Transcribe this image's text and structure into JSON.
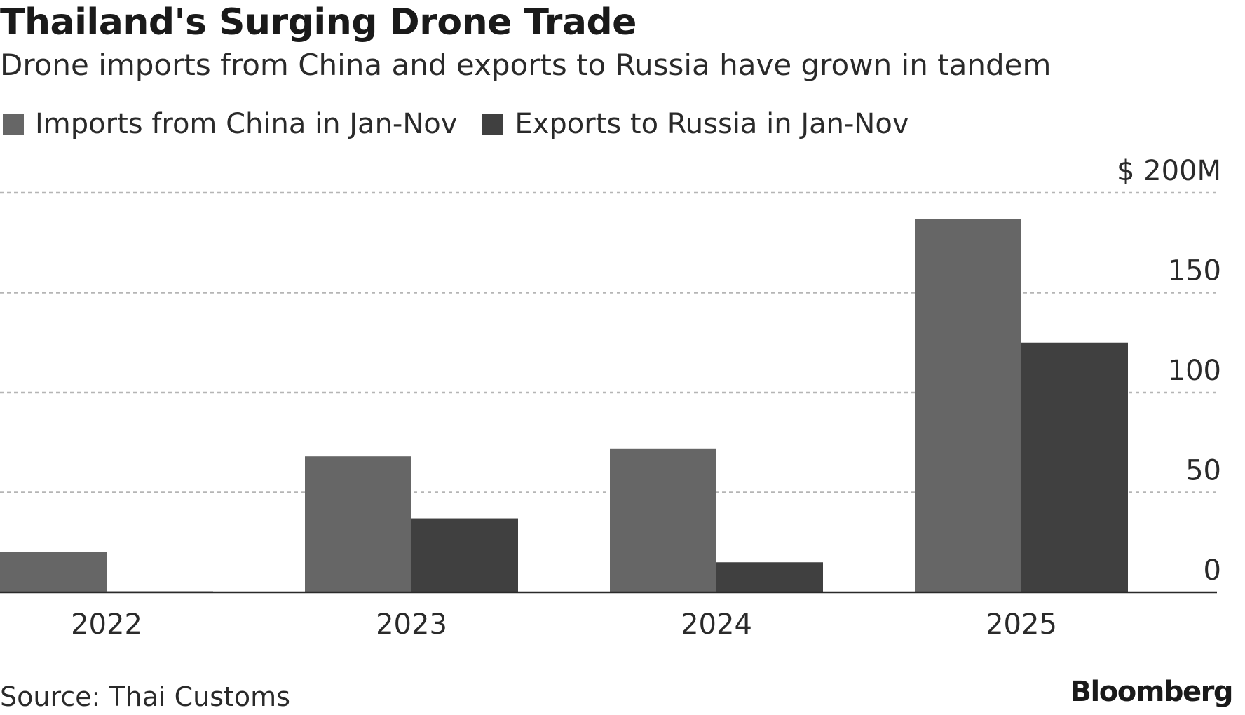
{
  "chart_data": {
    "type": "bar",
    "title": "Thailand's Surging Drone Trade",
    "subtitle": "Drone imports from China and exports to Russia have grown in tandem",
    "categories": [
      "2022",
      "2023",
      "2024",
      "2025"
    ],
    "series": [
      {
        "name": "Imports from China in Jan-Nov",
        "color": "#666666",
        "values": [
          20,
          68,
          72,
          187
        ]
      },
      {
        "name": "Exports to Russia in Jan-Nov",
        "color": "#404040",
        "values": [
          0.5,
          37,
          15,
          125
        ]
      }
    ],
    "ylim": [
      0,
      200
    ],
    "yticks": [
      {
        "value": 0,
        "label": "0"
      },
      {
        "value": 50,
        "label": "50"
      },
      {
        "value": 100,
        "label": "100"
      },
      {
        "value": 150,
        "label": "150"
      },
      {
        "value": 200,
        "label": "$ 200M"
      }
    ],
    "xlabel": "",
    "ylabel": "",
    "grid": true,
    "legend_position": "top-left"
  },
  "footer": {
    "source": "Source: Thai Customs",
    "brand": "Bloomberg"
  }
}
